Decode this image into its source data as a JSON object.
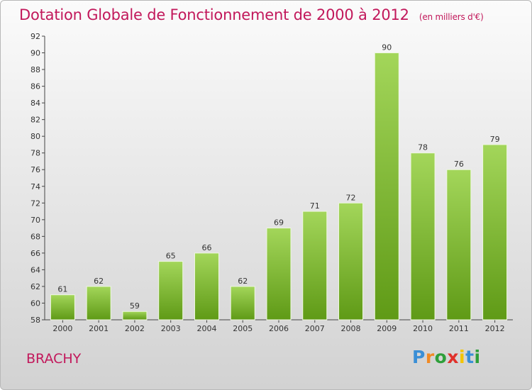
{
  "header": {
    "title": "Dotation Globale de Fonctionnement de 2000 à 2012",
    "subtitle": "(en milliers d'€)"
  },
  "footer": {
    "commune": "BRACHY",
    "logo_letters": [
      "P",
      "r",
      "o",
      "x",
      "i",
      "t",
      "i"
    ],
    "logo_colors": [
      "#3a8fd6",
      "#f08a24",
      "#2e9f3a",
      "#e0312b",
      "#f3c400",
      "#3a8fd6",
      "#2e9f3a"
    ]
  },
  "colors": {
    "bar_top": "#a3d65a",
    "bar_bottom": "#5f9a16",
    "title": "#c2185b"
  },
  "chart_data": {
    "type": "bar",
    "title": "Dotation Globale de Fonctionnement de 2000 à 2012",
    "subtitle": "(en milliers d'€)",
    "categories": [
      "2000",
      "2001",
      "2002",
      "2003",
      "2004",
      "2005",
      "2006",
      "2007",
      "2008",
      "2009",
      "2010",
      "2011",
      "2012"
    ],
    "values": [
      61,
      62,
      59,
      65,
      66,
      62,
      69,
      71,
      72,
      90,
      78,
      76,
      79
    ],
    "ylim": [
      58,
      92
    ],
    "yticks": [
      58,
      60,
      62,
      64,
      66,
      68,
      70,
      72,
      74,
      76,
      78,
      80,
      82,
      84,
      86,
      88,
      90,
      92
    ],
    "grid": false,
    "data_labels": true
  }
}
